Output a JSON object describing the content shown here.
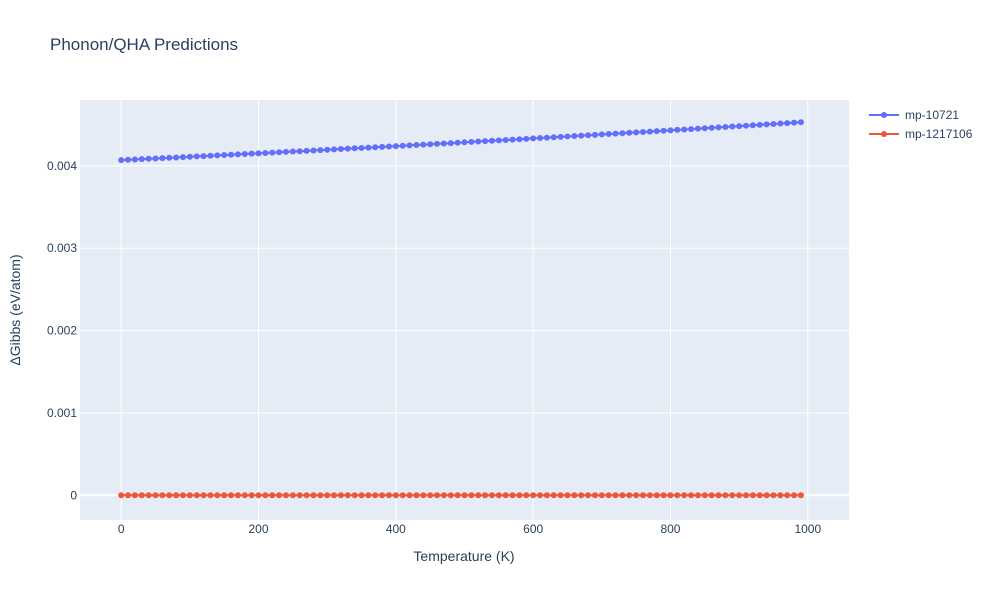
{
  "chart_data": {
    "type": "scatter",
    "mode": "lines+markers",
    "title": "Phonon/QHA Predictions",
    "xlabel": "Temperature (K)",
    "ylabel": "ΔGibbs (eV/atom)",
    "xlim": [
      -60,
      1060
    ],
    "ylim": [
      -0.0003,
      0.0048
    ],
    "x_ticks": [
      0,
      200,
      400,
      600,
      800,
      1000
    ],
    "x_tick_labels": [
      "0",
      "200",
      "400",
      "600",
      "800",
      "1000"
    ],
    "y_ticks": [
      0,
      0.001,
      0.002,
      0.003,
      0.004
    ],
    "y_tick_labels": [
      "0",
      "0.001",
      "0.002",
      "0.003",
      "0.004"
    ],
    "grid": true,
    "legend_position": "top-right",
    "x": {
      "start": 0,
      "stop": 990,
      "step": 10
    },
    "series": [
      {
        "name": "mp-10721",
        "color": "#636efa",
        "y_start": 0.00407,
        "y_end": 0.00453,
        "curve": "slightly-convex"
      },
      {
        "name": "mp-1217106",
        "color": "#ef553b",
        "y_start": 0.0,
        "y_end": 0.0,
        "curve": "flat"
      }
    ]
  }
}
